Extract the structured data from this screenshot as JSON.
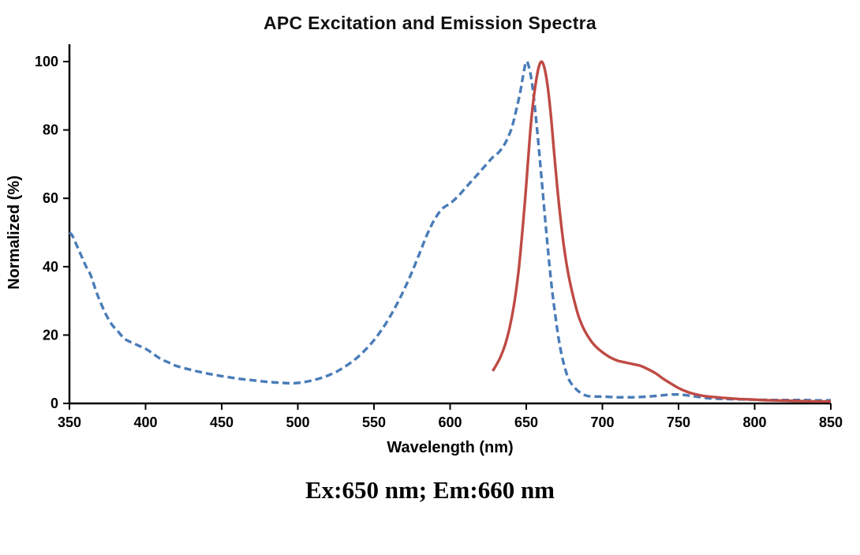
{
  "caption": "Ex:650 nm; Em:660 nm",
  "chart_data": {
    "type": "line",
    "title": "APC Excitation and Emission Spectra",
    "xlabel": "Wavelength (nm)",
    "ylabel": "Normalized (%)",
    "xlim": [
      350,
      850
    ],
    "ylim": [
      0,
      100
    ],
    "x_ticks": [
      350,
      400,
      450,
      500,
      550,
      600,
      650,
      700,
      750,
      800,
      850
    ],
    "y_ticks": [
      0,
      20,
      40,
      60,
      80,
      100
    ],
    "grid": false,
    "legend": "none",
    "axis_color": "#000000",
    "series": [
      {
        "name": "Excitation",
        "style": "dashed",
        "color": "#4a7cb8",
        "points": [
          [
            350,
            50
          ],
          [
            352,
            49
          ],
          [
            355,
            46
          ],
          [
            358,
            43
          ],
          [
            361,
            40
          ],
          [
            364,
            37.5
          ],
          [
            367,
            33.5
          ],
          [
            370,
            30
          ],
          [
            374,
            26
          ],
          [
            378,
            23
          ],
          [
            382,
            21
          ],
          [
            386,
            19
          ],
          [
            390,
            18
          ],
          [
            395,
            17
          ],
          [
            400,
            16
          ],
          [
            405,
            14.5
          ],
          [
            410,
            13
          ],
          [
            415,
            12
          ],
          [
            420,
            11
          ],
          [
            430,
            9.8
          ],
          [
            440,
            8.8
          ],
          [
            450,
            8
          ],
          [
            460,
            7.3
          ],
          [
            470,
            6.8
          ],
          [
            480,
            6.3
          ],
          [
            490,
            6
          ],
          [
            495,
            5.9
          ],
          [
            500,
            6
          ],
          [
            505,
            6.3
          ],
          [
            510,
            6.8
          ],
          [
            515,
            7.4
          ],
          [
            520,
            8.2
          ],
          [
            525,
            9.2
          ],
          [
            530,
            10.5
          ],
          [
            535,
            12
          ],
          [
            540,
            13.8
          ],
          [
            545,
            16
          ],
          [
            550,
            18.5
          ],
          [
            555,
            21.5
          ],
          [
            560,
            25
          ],
          [
            565,
            29
          ],
          [
            570,
            33.5
          ],
          [
            575,
            38.5
          ],
          [
            580,
            44
          ],
          [
            585,
            49.5
          ],
          [
            590,
            54
          ],
          [
            595,
            57
          ],
          [
            600,
            58.5
          ],
          [
            605,
            60.5
          ],
          [
            610,
            63
          ],
          [
            615,
            65.5
          ],
          [
            620,
            68
          ],
          [
            625,
            70.5
          ],
          [
            628,
            72
          ],
          [
            632,
            73.5
          ],
          [
            636,
            76
          ],
          [
            640,
            80
          ],
          [
            643,
            85
          ],
          [
            646,
            91
          ],
          [
            648,
            96
          ],
          [
            650,
            100
          ],
          [
            652,
            98
          ],
          [
            654,
            93
          ],
          [
            656,
            85
          ],
          [
            658,
            76
          ],
          [
            660,
            66
          ],
          [
            663,
            51
          ],
          [
            666,
            37
          ],
          [
            669,
            26
          ],
          [
            672,
            17
          ],
          [
            675,
            11
          ],
          [
            678,
            7
          ],
          [
            682,
            4.5
          ],
          [
            686,
            3
          ],
          [
            690,
            2.2
          ],
          [
            695,
            2
          ],
          [
            700,
            2
          ],
          [
            705,
            1.9
          ],
          [
            710,
            1.8
          ],
          [
            715,
            1.8
          ],
          [
            720,
            1.8
          ],
          [
            725,
            1.9
          ],
          [
            730,
            2
          ],
          [
            735,
            2.2
          ],
          [
            740,
            2.4
          ],
          [
            745,
            2.6
          ],
          [
            750,
            2.6
          ],
          [
            755,
            2.4
          ],
          [
            760,
            2.1
          ],
          [
            765,
            1.8
          ],
          [
            770,
            1.5
          ],
          [
            775,
            1.4
          ],
          [
            780,
            1.3
          ],
          [
            790,
            1.2
          ],
          [
            800,
            1.1
          ],
          [
            810,
            1
          ],
          [
            820,
            1
          ],
          [
            830,
            1
          ],
          [
            840,
            0.9
          ],
          [
            850,
            0.9
          ]
        ]
      },
      {
        "name": "Emission",
        "style": "solid",
        "color": "#bf4a44",
        "points": [
          [
            628,
            9.5
          ],
          [
            630,
            11
          ],
          [
            633,
            13.5
          ],
          [
            636,
            17
          ],
          [
            639,
            22
          ],
          [
            642,
            29
          ],
          [
            645,
            39
          ],
          [
            648,
            53
          ],
          [
            650,
            64
          ],
          [
            652,
            76
          ],
          [
            654,
            86
          ],
          [
            656,
            93
          ],
          [
            658,
            98
          ],
          [
            660,
            100
          ],
          [
            662,
            98
          ],
          [
            664,
            93
          ],
          [
            666,
            85
          ],
          [
            668,
            75
          ],
          [
            670,
            65
          ],
          [
            672,
            56
          ],
          [
            675,
            45
          ],
          [
            678,
            37
          ],
          [
            681,
            31
          ],
          [
            684,
            26
          ],
          [
            687,
            22.5
          ],
          [
            690,
            20
          ],
          [
            693,
            18
          ],
          [
            696,
            16.5
          ],
          [
            700,
            15
          ],
          [
            705,
            13.5
          ],
          [
            710,
            12.5
          ],
          [
            715,
            12
          ],
          [
            720,
            11.5
          ],
          [
            725,
            11
          ],
          [
            730,
            10
          ],
          [
            735,
            8.8
          ],
          [
            740,
            7.2
          ],
          [
            745,
            5.8
          ],
          [
            750,
            4.5
          ],
          [
            755,
            3.5
          ],
          [
            760,
            2.8
          ],
          [
            765,
            2.3
          ],
          [
            770,
            2
          ],
          [
            775,
            1.8
          ],
          [
            780,
            1.6
          ],
          [
            790,
            1.3
          ],
          [
            800,
            1.1
          ],
          [
            810,
            0.9
          ],
          [
            820,
            0.8
          ],
          [
            830,
            0.7
          ],
          [
            840,
            0.6
          ],
          [
            850,
            0.6
          ]
        ]
      }
    ]
  }
}
